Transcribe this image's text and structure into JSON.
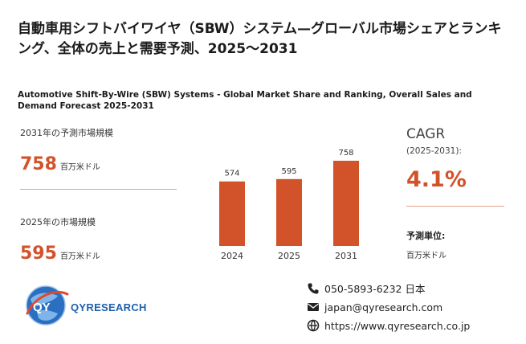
{
  "header": {
    "title_ja": "自動車用シフトバイワイヤ（SBW）システム—グローバル市場シェアとランキング、全体の売上と需要予測、2025～2031",
    "title_en": "Automotive Shift-By-Wire (SBW) Systems - Global Market Share and Ranking, Overall Sales and Demand Forecast 2025-2031"
  },
  "forecast": {
    "label": "2031年の予測市場規模",
    "value": "758",
    "unit": "百万米ドル"
  },
  "current": {
    "label": "2025年の市場規模",
    "value": "595",
    "unit": "百万米ドル"
  },
  "chart_data": {
    "type": "bar",
    "categories": [
      "2024",
      "2025",
      "2031"
    ],
    "values": [
      574,
      595,
      758
    ],
    "title": "",
    "xlabel": "",
    "ylabel": "",
    "bar_color": "#d2522a",
    "grid": false
  },
  "cagr": {
    "title": "CAGR",
    "period": "(2025-2031):",
    "value": "4.1%"
  },
  "units": {
    "label": "予測単位:",
    "value": "百万米ドル"
  },
  "logo": {
    "text": "QYRESEARCH"
  },
  "contact": {
    "phone": "050-5893-6232 日本",
    "email": "japan@qyresearch.com",
    "website": "https://www.qyresearch.co.jp"
  },
  "icons": {
    "phone": "phone-icon",
    "email": "email-icon",
    "website": "globe-icon"
  },
  "colors": {
    "accent": "#d2522a",
    "brand_blue": "#1f5fae"
  }
}
